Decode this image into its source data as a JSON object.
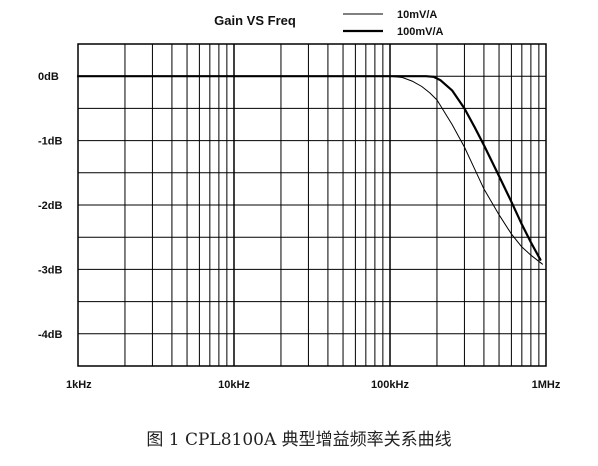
{
  "chart_data": {
    "type": "line",
    "title": "Gain VS Freq",
    "x_scale": "log",
    "xlim": [
      1000,
      1000000
    ],
    "ylim": [
      -4.5,
      0.5
    ],
    "grid": true,
    "legend": "top-right",
    "x_ticks": [
      {
        "value": 1000,
        "label": "1kHz"
      },
      {
        "value": 10000,
        "label": "10kHz"
      },
      {
        "value": 100000,
        "label": "100kHz"
      },
      {
        "value": 1000000,
        "label": "1MHz"
      }
    ],
    "y_ticks": [
      {
        "value": 0,
        "label": "0dB"
      },
      {
        "value": -1,
        "label": "-1dB"
      },
      {
        "value": -2,
        "label": "-2dB"
      },
      {
        "value": -3,
        "label": "-3dB"
      },
      {
        "value": -4,
        "label": "-4dB"
      }
    ],
    "series": [
      {
        "name": "10mV/A",
        "color": "#000000",
        "points": [
          [
            1000,
            0
          ],
          [
            10000,
            0
          ],
          [
            100000,
            0
          ],
          [
            120000,
            -0.02
          ],
          [
            140000,
            -0.08
          ],
          [
            160000,
            -0.16
          ],
          [
            180000,
            -0.26
          ],
          [
            200000,
            -0.37
          ],
          [
            250000,
            -0.75
          ],
          [
            300000,
            -1.1
          ],
          [
            350000,
            -1.45
          ],
          [
            400000,
            -1.75
          ],
          [
            500000,
            -2.15
          ],
          [
            600000,
            -2.45
          ],
          [
            700000,
            -2.65
          ],
          [
            800000,
            -2.78
          ],
          [
            950000,
            -2.92
          ]
        ]
      },
      {
        "name": "100mV/A",
        "color": "#000000",
        "points": [
          [
            1000,
            0
          ],
          [
            10000,
            0
          ],
          [
            100000,
            0
          ],
          [
            170000,
            0
          ],
          [
            190000,
            -0.01
          ],
          [
            210000,
            -0.06
          ],
          [
            250000,
            -0.22
          ],
          [
            300000,
            -0.5
          ],
          [
            350000,
            -0.8
          ],
          [
            400000,
            -1.07
          ],
          [
            500000,
            -1.55
          ],
          [
            600000,
            -1.95
          ],
          [
            700000,
            -2.3
          ],
          [
            800000,
            -2.58
          ],
          [
            920000,
            -2.85
          ]
        ]
      }
    ]
  },
  "caption": "图 1 CPL8100A 典型增益频率关系曲线"
}
